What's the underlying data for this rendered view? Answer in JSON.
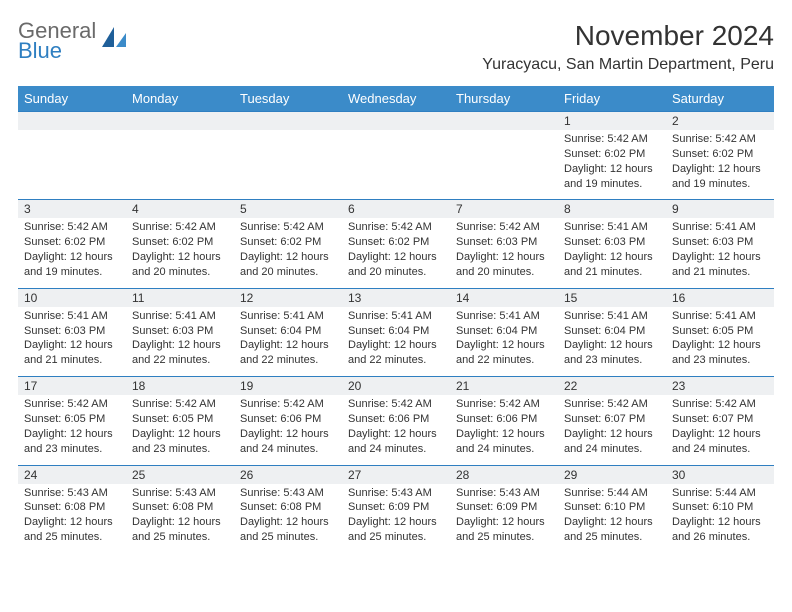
{
  "logo": {
    "text_top": "General",
    "text_bottom": "Blue"
  },
  "header": {
    "month_title": "November 2024",
    "location": "Yuracyacu, San Martin Department, Peru"
  },
  "colors": {
    "header_bg": "#3b8bc9",
    "header_text": "#ffffff",
    "row_border": "#2f7fc1",
    "daynum_bg": "#eef0f2",
    "body_text": "#333333",
    "logo_gray": "#6a6a6a",
    "logo_blue": "#2f7fc1"
  },
  "day_headers": [
    "Sunday",
    "Monday",
    "Tuesday",
    "Wednesday",
    "Thursday",
    "Friday",
    "Saturday"
  ],
  "weeks": [
    [
      null,
      null,
      null,
      null,
      null,
      {
        "n": "1",
        "sr": "Sunrise: 5:42 AM",
        "ss": "Sunset: 6:02 PM",
        "d1": "Daylight: 12 hours",
        "d2": "and 19 minutes."
      },
      {
        "n": "2",
        "sr": "Sunrise: 5:42 AM",
        "ss": "Sunset: 6:02 PM",
        "d1": "Daylight: 12 hours",
        "d2": "and 19 minutes."
      }
    ],
    [
      {
        "n": "3",
        "sr": "Sunrise: 5:42 AM",
        "ss": "Sunset: 6:02 PM",
        "d1": "Daylight: 12 hours",
        "d2": "and 19 minutes."
      },
      {
        "n": "4",
        "sr": "Sunrise: 5:42 AM",
        "ss": "Sunset: 6:02 PM",
        "d1": "Daylight: 12 hours",
        "d2": "and 20 minutes."
      },
      {
        "n": "5",
        "sr": "Sunrise: 5:42 AM",
        "ss": "Sunset: 6:02 PM",
        "d1": "Daylight: 12 hours",
        "d2": "and 20 minutes."
      },
      {
        "n": "6",
        "sr": "Sunrise: 5:42 AM",
        "ss": "Sunset: 6:02 PM",
        "d1": "Daylight: 12 hours",
        "d2": "and 20 minutes."
      },
      {
        "n": "7",
        "sr": "Sunrise: 5:42 AM",
        "ss": "Sunset: 6:03 PM",
        "d1": "Daylight: 12 hours",
        "d2": "and 20 minutes."
      },
      {
        "n": "8",
        "sr": "Sunrise: 5:41 AM",
        "ss": "Sunset: 6:03 PM",
        "d1": "Daylight: 12 hours",
        "d2": "and 21 minutes."
      },
      {
        "n": "9",
        "sr": "Sunrise: 5:41 AM",
        "ss": "Sunset: 6:03 PM",
        "d1": "Daylight: 12 hours",
        "d2": "and 21 minutes."
      }
    ],
    [
      {
        "n": "10",
        "sr": "Sunrise: 5:41 AM",
        "ss": "Sunset: 6:03 PM",
        "d1": "Daylight: 12 hours",
        "d2": "and 21 minutes."
      },
      {
        "n": "11",
        "sr": "Sunrise: 5:41 AM",
        "ss": "Sunset: 6:03 PM",
        "d1": "Daylight: 12 hours",
        "d2": "and 22 minutes."
      },
      {
        "n": "12",
        "sr": "Sunrise: 5:41 AM",
        "ss": "Sunset: 6:04 PM",
        "d1": "Daylight: 12 hours",
        "d2": "and 22 minutes."
      },
      {
        "n": "13",
        "sr": "Sunrise: 5:41 AM",
        "ss": "Sunset: 6:04 PM",
        "d1": "Daylight: 12 hours",
        "d2": "and 22 minutes."
      },
      {
        "n": "14",
        "sr": "Sunrise: 5:41 AM",
        "ss": "Sunset: 6:04 PM",
        "d1": "Daylight: 12 hours",
        "d2": "and 22 minutes."
      },
      {
        "n": "15",
        "sr": "Sunrise: 5:41 AM",
        "ss": "Sunset: 6:04 PM",
        "d1": "Daylight: 12 hours",
        "d2": "and 23 minutes."
      },
      {
        "n": "16",
        "sr": "Sunrise: 5:41 AM",
        "ss": "Sunset: 6:05 PM",
        "d1": "Daylight: 12 hours",
        "d2": "and 23 minutes."
      }
    ],
    [
      {
        "n": "17",
        "sr": "Sunrise: 5:42 AM",
        "ss": "Sunset: 6:05 PM",
        "d1": "Daylight: 12 hours",
        "d2": "and 23 minutes."
      },
      {
        "n": "18",
        "sr": "Sunrise: 5:42 AM",
        "ss": "Sunset: 6:05 PM",
        "d1": "Daylight: 12 hours",
        "d2": "and 23 minutes."
      },
      {
        "n": "19",
        "sr": "Sunrise: 5:42 AM",
        "ss": "Sunset: 6:06 PM",
        "d1": "Daylight: 12 hours",
        "d2": "and 24 minutes."
      },
      {
        "n": "20",
        "sr": "Sunrise: 5:42 AM",
        "ss": "Sunset: 6:06 PM",
        "d1": "Daylight: 12 hours",
        "d2": "and 24 minutes."
      },
      {
        "n": "21",
        "sr": "Sunrise: 5:42 AM",
        "ss": "Sunset: 6:06 PM",
        "d1": "Daylight: 12 hours",
        "d2": "and 24 minutes."
      },
      {
        "n": "22",
        "sr": "Sunrise: 5:42 AM",
        "ss": "Sunset: 6:07 PM",
        "d1": "Daylight: 12 hours",
        "d2": "and 24 minutes."
      },
      {
        "n": "23",
        "sr": "Sunrise: 5:42 AM",
        "ss": "Sunset: 6:07 PM",
        "d1": "Daylight: 12 hours",
        "d2": "and 24 minutes."
      }
    ],
    [
      {
        "n": "24",
        "sr": "Sunrise: 5:43 AM",
        "ss": "Sunset: 6:08 PM",
        "d1": "Daylight: 12 hours",
        "d2": "and 25 minutes."
      },
      {
        "n": "25",
        "sr": "Sunrise: 5:43 AM",
        "ss": "Sunset: 6:08 PM",
        "d1": "Daylight: 12 hours",
        "d2": "and 25 minutes."
      },
      {
        "n": "26",
        "sr": "Sunrise: 5:43 AM",
        "ss": "Sunset: 6:08 PM",
        "d1": "Daylight: 12 hours",
        "d2": "and 25 minutes."
      },
      {
        "n": "27",
        "sr": "Sunrise: 5:43 AM",
        "ss": "Sunset: 6:09 PM",
        "d1": "Daylight: 12 hours",
        "d2": "and 25 minutes."
      },
      {
        "n": "28",
        "sr": "Sunrise: 5:43 AM",
        "ss": "Sunset: 6:09 PM",
        "d1": "Daylight: 12 hours",
        "d2": "and 25 minutes."
      },
      {
        "n": "29",
        "sr": "Sunrise: 5:44 AM",
        "ss": "Sunset: 6:10 PM",
        "d1": "Daylight: 12 hours",
        "d2": "and 25 minutes."
      },
      {
        "n": "30",
        "sr": "Sunrise: 5:44 AM",
        "ss": "Sunset: 6:10 PM",
        "d1": "Daylight: 12 hours",
        "d2": "and 26 minutes."
      }
    ]
  ]
}
